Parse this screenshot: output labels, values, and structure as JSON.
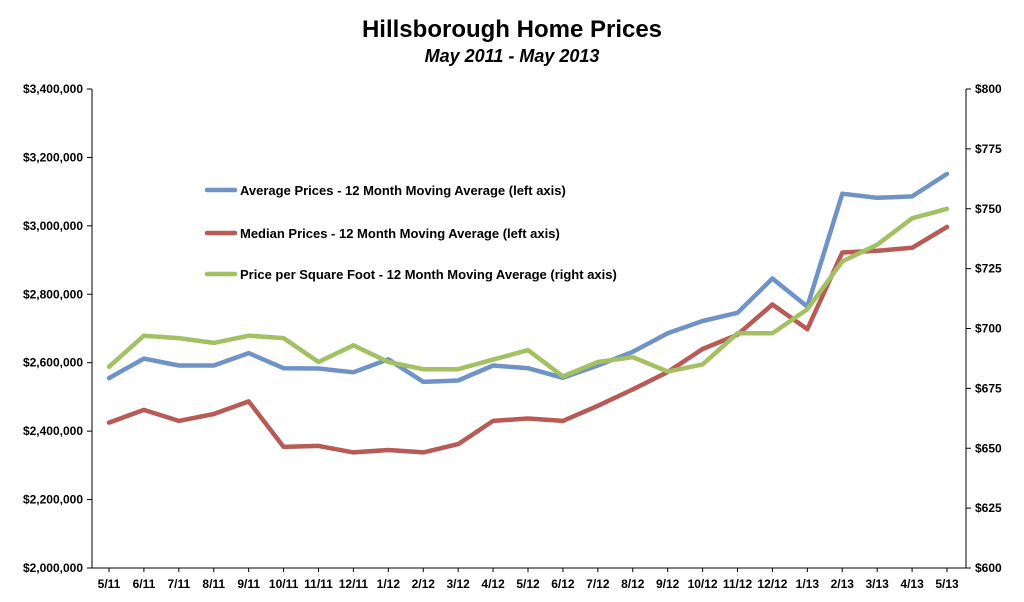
{
  "chart_data": {
    "type": "line",
    "title": "Hillsborough Home Prices",
    "subtitle": "May 2011 - May 2013",
    "categories": [
      "5/11",
      "6/11",
      "7/11",
      "8/11",
      "9/11",
      "10/11",
      "11/11",
      "12/11",
      "1/12",
      "2/12",
      "3/12",
      "4/12",
      "5/12",
      "6/12",
      "7/12",
      "8/12",
      "9/12",
      "10/12",
      "11/12",
      "12/12",
      "1/13",
      "2/13",
      "3/13",
      "4/13",
      "5/13"
    ],
    "y_left": {
      "ylim": [
        2000000,
        3400000
      ],
      "ticks": [
        "$2,000,000",
        "$2,200,000",
        "$2,400,000",
        "$2,600,000",
        "$2,800,000",
        "$3,000,000",
        "$3,200,000",
        "$3,400,000"
      ]
    },
    "y_right": {
      "ylim": [
        600,
        800
      ],
      "ticks": [
        "$600",
        "$625",
        "$650",
        "$675",
        "$700",
        "$725",
        "$750",
        "$775",
        "$800"
      ]
    },
    "grid": false,
    "legend_position": "upper-left inside plot",
    "series": [
      {
        "name": "Average Prices - 12 Month Moving Average (left axis)",
        "axis": "left",
        "color": "#6F93C6",
        "values": [
          2555000,
          2612000,
          2592000,
          2592000,
          2628000,
          2584000,
          2583000,
          2572000,
          2610000,
          2544000,
          2548000,
          2592000,
          2584000,
          2556000,
          2592000,
          2632000,
          2686000,
          2722000,
          2746000,
          2846000,
          2764000,
          3094000,
          3082000,
          3086000,
          3152000
        ]
      },
      {
        "name": "Median Prices - 12 Month Moving Average (left axis)",
        "axis": "left",
        "color": "#B85A55",
        "values": [
          2425000,
          2462000,
          2430000,
          2450000,
          2487000,
          2354000,
          2357000,
          2338000,
          2345000,
          2338000,
          2362000,
          2430000,
          2437000,
          2430000,
          2474000,
          2522000,
          2573000,
          2640000,
          2682000,
          2770000,
          2698000,
          2922000,
          2927000,
          2936000,
          2997000
        ]
      },
      {
        "name": "Price per Square Foot - 12 Month Moving Average (right axis)",
        "axis": "right",
        "color": "#A3C062",
        "values": [
          684,
          697,
          696,
          694,
          697,
          696,
          686,
          693,
          686,
          683,
          683,
          687,
          691,
          680,
          686,
          688,
          682,
          685,
          698,
          698,
          708,
          728,
          735,
          746,
          750
        ]
      }
    ]
  }
}
